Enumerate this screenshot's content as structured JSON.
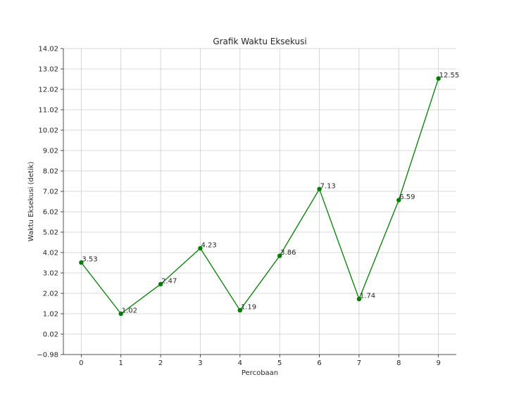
{
  "chart_data": {
    "type": "line",
    "title": "Grafik Waktu Eksekusi",
    "xlabel": "Percobaan",
    "ylabel": "Waktu Eksekusi (detik)",
    "x": [
      0,
      1,
      2,
      3,
      4,
      5,
      6,
      7,
      8,
      9
    ],
    "series": [
      {
        "values": [
          3.53,
          1.02,
          2.47,
          4.23,
          1.19,
          3.86,
          7.13,
          1.74,
          6.59,
          12.55
        ],
        "color": "#008000"
      }
    ],
    "data_labels": [
      "3.53",
      "1.02",
      "2.47",
      "4.23",
      "1.19",
      "3.86",
      "7.13",
      "1.74",
      "6.59",
      "12.55"
    ],
    "x_ticks": [
      "0",
      "1",
      "2",
      "3",
      "4",
      "5",
      "6",
      "7",
      "8",
      "9"
    ],
    "y_ticks": [
      "−0.98",
      "0.02",
      "1.02",
      "2.02",
      "3.02",
      "4.02",
      "5.02",
      "6.02",
      "7.02",
      "8.02",
      "9.02",
      "10.02",
      "11.02",
      "12.02",
      "13.02",
      "14.02"
    ],
    "y_tick_values": [
      -0.98,
      0.02,
      1.02,
      2.02,
      3.02,
      4.02,
      5.02,
      6.02,
      7.02,
      8.02,
      9.02,
      10.02,
      11.02,
      12.02,
      13.02,
      14.02
    ],
    "xlim": [
      -0.45,
      9.45
    ],
    "ylim": [
      -0.98,
      14.02
    ],
    "grid": true,
    "marker": "circle"
  }
}
